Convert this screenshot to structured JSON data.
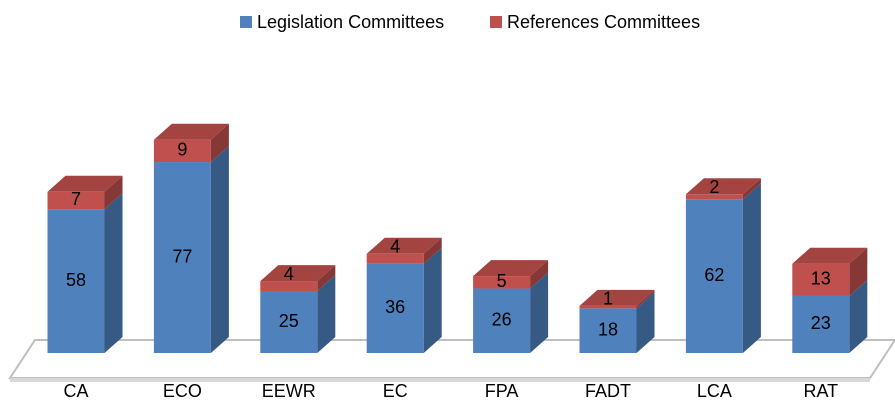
{
  "chart_data": {
    "type": "bar3d_stacked",
    "categories": [
      "CA",
      "ECO",
      "EEWR",
      "EC",
      "FPA",
      "FADT",
      "LCA",
      "RAT"
    ],
    "series": [
      {
        "name": "Legislation Committees",
        "color": "#4f81bd",
        "values": [
          58,
          77,
          25,
          36,
          26,
          18,
          62,
          23
        ]
      },
      {
        "name": "References Committees",
        "color": "#c0504d",
        "values": [
          7,
          9,
          4,
          4,
          5,
          1,
          2,
          13
        ]
      }
    ],
    "legend": "top"
  }
}
